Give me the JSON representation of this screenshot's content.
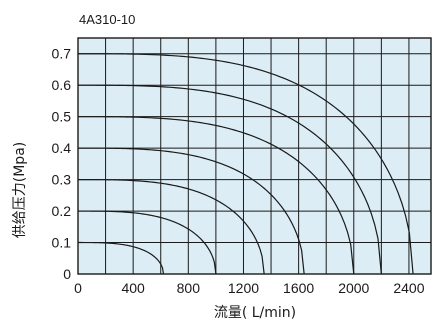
{
  "chart_data": {
    "type": "line",
    "title": "4A310-10",
    "xlabel": "流量( L/min)",
    "ylabel": "供给压力(Mpa)",
    "xlim": [
      0,
      2560
    ],
    "ylim": [
      0,
      0.75
    ],
    "x_ticks": [
      0,
      400,
      800,
      1200,
      1600,
      2000,
      2400
    ],
    "y_ticks": [
      0,
      0.1,
      0.2,
      0.3,
      0.4,
      0.5,
      0.6,
      0.7
    ],
    "x_tick_labels": [
      "0",
      "400",
      "800",
      "1200",
      "1600",
      "2000",
      "2400"
    ],
    "y_tick_labels": [
      "0",
      "0.1",
      "0.2",
      "0.3",
      "0.4",
      "0.5",
      "0.6",
      "0.7"
    ],
    "grid": true,
    "colors": {
      "plot_background": "#dcedf5",
      "grid": "#1a1a1a",
      "curve": "#1a1a1a",
      "text": "#1a1a1a"
    },
    "series": [
      {
        "supply_pressure": 0.1,
        "max_flow": 620,
        "points": [
          [
            0,
            0.1
          ],
          [
            620,
            0
          ]
        ]
      },
      {
        "supply_pressure": 0.2,
        "max_flow": 1000,
        "points": [
          [
            0,
            0.2
          ],
          [
            1000,
            0
          ]
        ]
      },
      {
        "supply_pressure": 0.3,
        "max_flow": 1350,
        "points": [
          [
            0,
            0.3
          ],
          [
            1350,
            0
          ]
        ]
      },
      {
        "supply_pressure": 0.4,
        "max_flow": 1640,
        "points": [
          [
            0,
            0.4
          ],
          [
            1640,
            0
          ]
        ]
      },
      {
        "supply_pressure": 0.5,
        "max_flow": 2000,
        "points": [
          [
            0,
            0.5
          ],
          [
            2000,
            0
          ]
        ]
      },
      {
        "supply_pressure": 0.6,
        "max_flow": 2200,
        "points": [
          [
            0,
            0.6
          ],
          [
            2200,
            0
          ]
        ]
      },
      {
        "supply_pressure": 0.7,
        "max_flow": 2430,
        "points": [
          [
            0,
            0.7
          ],
          [
            2430,
            0
          ]
        ]
      }
    ]
  }
}
